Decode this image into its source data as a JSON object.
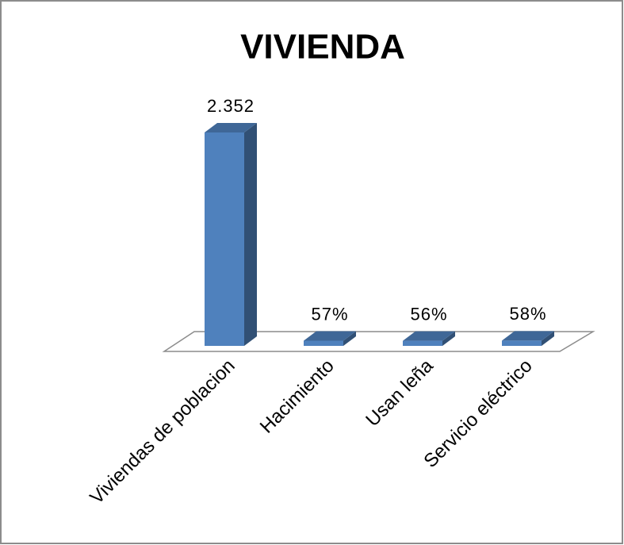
{
  "chart_data": {
    "type": "bar3d",
    "title": "VIVIENDA",
    "categories": [
      "Viviendas de poblacion",
      "Hacimiento",
      "Usan leña",
      "Servicio eléctrico"
    ],
    "values": [
      2352,
      57,
      56,
      58
    ],
    "value_labels": [
      "2.352",
      "57%",
      "56%",
      "58%"
    ],
    "color": "#4f81bd"
  }
}
